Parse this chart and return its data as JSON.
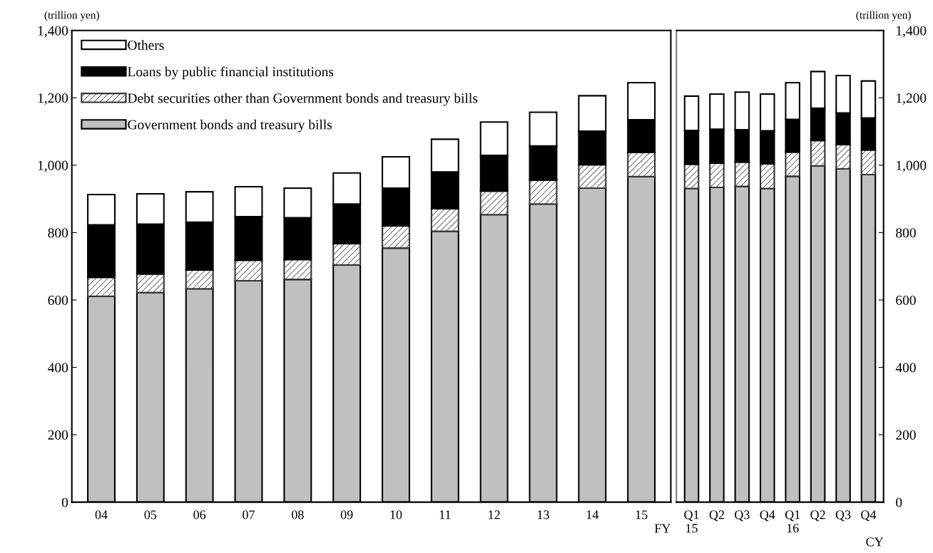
{
  "chart_data": [
    {
      "type": "bar",
      "stacked": true,
      "ylabel": "(trillion yen)",
      "xlabel": "FY",
      "categories": [
        "04",
        "05",
        "06",
        "07",
        "08",
        "09",
        "10",
        "11",
        "12",
        "13",
        "14",
        "15"
      ],
      "series": [
        {
          "name": "Government bonds and treasury bills",
          "color": "#c0c0c0",
          "values": [
            611,
            622,
            633,
            657,
            661,
            704,
            754,
            804,
            853,
            885,
            932,
            966
          ]
        },
        {
          "name": "Debt securities other than Government bonds and treasury bills",
          "color": "#333333",
          "values": [
            56,
            55,
            56,
            61,
            59,
            63,
            66,
            67,
            70,
            71,
            69,
            72
          ]
        },
        {
          "name": "Loans by public financial institutions",
          "color": "#000000",
          "values": [
            156,
            148,
            142,
            129,
            124,
            118,
            112,
            109,
            106,
            101,
            100,
            97
          ]
        },
        {
          "name": "Others",
          "color": "#ffffff",
          "values": [
            90,
            90,
            90,
            89,
            88,
            92,
            93,
            97,
            99,
            100,
            105,
            110
          ]
        }
      ],
      "ylim": [
        0,
        1400
      ],
      "yticks": [
        {
          "value": 0,
          "label": "0"
        },
        {
          "value": 200,
          "label": "200"
        },
        {
          "value": 400,
          "label": "400"
        },
        {
          "value": 600,
          "label": "600"
        },
        {
          "value": 800,
          "label": "800"
        },
        {
          "value": 1000,
          "label": "1,000"
        },
        {
          "value": 1200,
          "label": "1,200"
        },
        {
          "value": 1400,
          "label": "1,400"
        }
      ],
      "grid": false,
      "legend": "top left"
    },
    {
      "type": "bar",
      "stacked": true,
      "ylabel": "(trillion yen)",
      "xlabel": "CY",
      "categories": [
        "Q1\n15",
        "Q2",
        "Q3",
        "Q4",
        "Q1\n16",
        "Q2",
        "Q3",
        "Q4"
      ],
      "series": [
        {
          "color": "#c0c0c0",
          "values": [
            931,
            934,
            937,
            931,
            967,
            998,
            989,
            972
          ]
        },
        {
          "color": "#333333",
          "values": [
            72,
            72,
            72,
            73,
            72,
            75,
            72,
            73
          ]
        },
        {
          "color": "#000000",
          "values": [
            100,
            101,
            96,
            98,
            97,
            96,
            94,
            95
          ]
        },
        {
          "color": "#ffffff",
          "values": [
            102,
            104,
            112,
            109,
            109,
            109,
            111,
            110
          ]
        }
      ],
      "ylim": [
        0,
        1400
      ],
      "yticks": [
        {
          "value": 0,
          "label": "0"
        },
        {
          "value": 200,
          "label": "200"
        },
        {
          "value": 400,
          "label": "400"
        },
        {
          "value": 600,
          "label": "600"
        },
        {
          "value": 800,
          "label": "800"
        },
        {
          "value": 1000,
          "label": "1,000"
        },
        {
          "value": 1200,
          "label": "1,200"
        },
        {
          "value": 1400,
          "label": "1,400"
        }
      ],
      "grid": false,
      "legend": false
    }
  ]
}
